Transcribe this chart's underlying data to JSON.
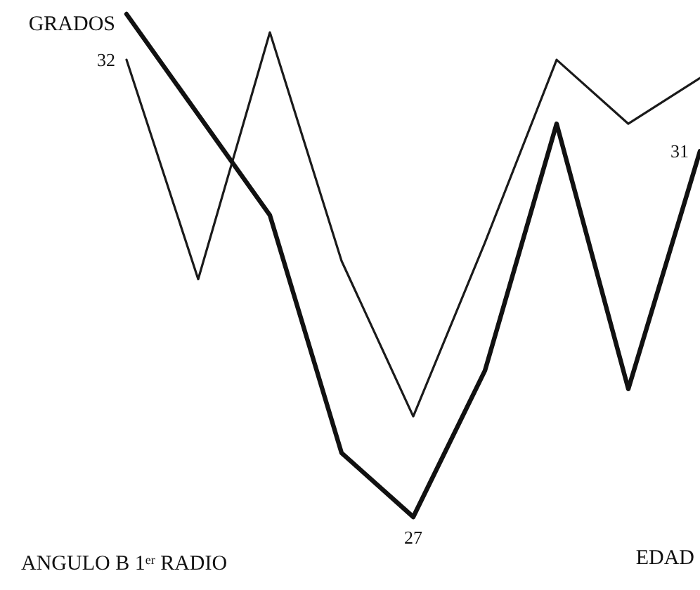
{
  "chart_data": {
    "type": "line",
    "title": "ANGULO B 1$^{er}$ RADIO",
    "ylabel": "GRADOS",
    "xlabel": "EDAD",
    "categories": [
      null,
      null,
      null,
      null,
      null,
      null,
      null,
      null,
      null
    ],
    "series": [
      {
        "color": "#1a1a1a",
        "values": [
          32,
          29.6,
          32.3,
          29.8,
          28.1,
          30.0,
          32.0,
          31.3,
          31.8
        ],
        "value_labels": [
          "32",
          null,
          null,
          null,
          null,
          null,
          null,
          null,
          null
        ]
      },
      {
        "color": "#111111",
        "values": [
          32.5,
          31.4,
          30.3,
          27.7,
          27,
          28.6,
          31.3,
          28.4,
          31
        ],
        "value_labels": [
          null,
          null,
          null,
          null,
          "27",
          null,
          null,
          null,
          "31"
        ]
      }
    ],
    "marker": "none",
    "line_style": "solid",
    "grid": false,
    "tick_labels": false
  }
}
